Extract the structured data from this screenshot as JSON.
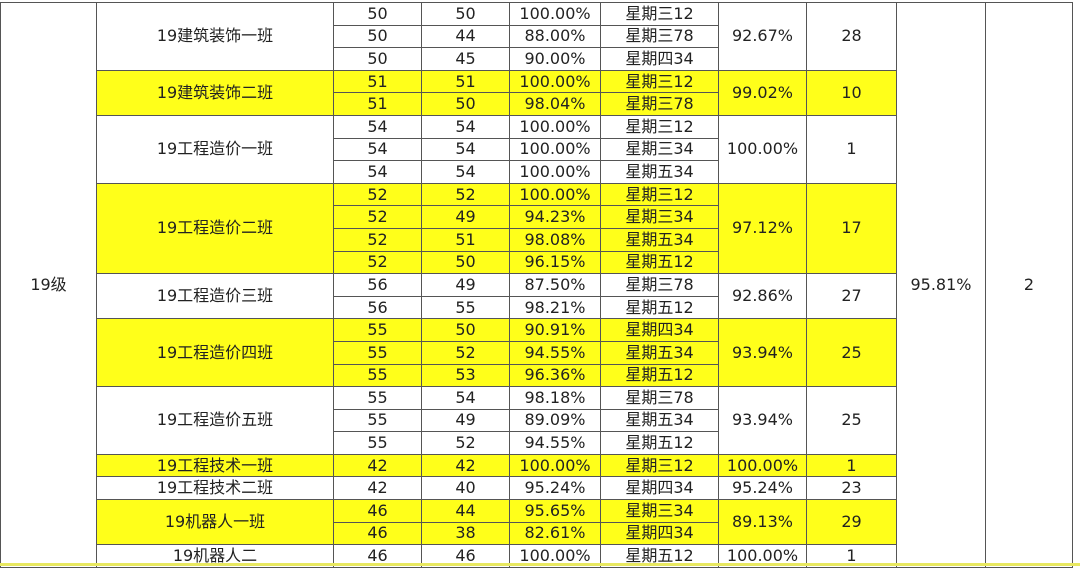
{
  "grade": "19级",
  "grade_rate": "95.81%",
  "grade_rank": "2",
  "colors": {
    "highlight": "#ffff1a",
    "border": "#555555"
  },
  "classes": [
    {
      "name": "19建筑装饰一班",
      "highlight": false,
      "rate": "92.67%",
      "rank": "28",
      "rows": [
        [
          "50",
          "50",
          "100.00%",
          "星期三12"
        ],
        [
          "50",
          "44",
          "88.00%",
          "星期三78"
        ],
        [
          "50",
          "45",
          "90.00%",
          "星期四34"
        ]
      ]
    },
    {
      "name": "19建筑装饰二班",
      "highlight": true,
      "rate": "99.02%",
      "rank": "10",
      "rows": [
        [
          "51",
          "51",
          "100.00%",
          "星期三12"
        ],
        [
          "51",
          "50",
          "98.04%",
          "星期三78"
        ]
      ]
    },
    {
      "name": "19工程造价一班",
      "highlight": false,
      "rate": "100.00%",
      "rank": "1",
      "rows": [
        [
          "54",
          "54",
          "100.00%",
          "星期三12"
        ],
        [
          "54",
          "54",
          "100.00%",
          "星期三34"
        ],
        [
          "54",
          "54",
          "100.00%",
          "星期五34"
        ]
      ]
    },
    {
      "name": "19工程造价二班",
      "highlight": true,
      "rate": "97.12%",
      "rank": "17",
      "rows": [
        [
          "52",
          "52",
          "100.00%",
          "星期三12"
        ],
        [
          "52",
          "49",
          "94.23%",
          "星期三34"
        ],
        [
          "52",
          "51",
          "98.08%",
          "星期五34"
        ],
        [
          "52",
          "50",
          "96.15%",
          "星期五12"
        ]
      ]
    },
    {
      "name": "19工程造价三班",
      "highlight": false,
      "rate": "92.86%",
      "rank": "27",
      "rows": [
        [
          "56",
          "49",
          "87.50%",
          "星期三78"
        ],
        [
          "56",
          "55",
          "98.21%",
          "星期五12"
        ]
      ]
    },
    {
      "name": "19工程造价四班",
      "highlight": true,
      "rate": "93.94%",
      "rank": "25",
      "rows": [
        [
          "55",
          "50",
          "90.91%",
          "星期四34"
        ],
        [
          "55",
          "52",
          "94.55%",
          "星期五34"
        ],
        [
          "55",
          "53",
          "96.36%",
          "星期五12"
        ]
      ]
    },
    {
      "name": "19工程造价五班",
      "highlight": false,
      "rate": "93.94%",
      "rank": "25",
      "rows": [
        [
          "55",
          "54",
          "98.18%",
          "星期三78"
        ],
        [
          "55",
          "49",
          "89.09%",
          "星期五34"
        ],
        [
          "55",
          "52",
          "94.55%",
          "星期五12"
        ]
      ]
    },
    {
      "name": "19工程技术一班",
      "highlight": true,
      "rate": "100.00%",
      "rank": "1",
      "rows": [
        [
          "42",
          "42",
          "100.00%",
          "星期三12"
        ]
      ]
    },
    {
      "name": "19工程技术二班",
      "highlight": false,
      "rate": "95.24%",
      "rank": "23",
      "rows": [
        [
          "42",
          "40",
          "95.24%",
          "星期四34"
        ]
      ]
    },
    {
      "name": "19机器人一班",
      "highlight": true,
      "rate": "89.13%",
      "rank": "29",
      "rows": [
        [
          "46",
          "44",
          "95.65%",
          "星期三34"
        ],
        [
          "46",
          "38",
          "82.61%",
          "星期四34"
        ]
      ]
    },
    {
      "name": "19机器人二",
      "highlight": false,
      "rate": "100.00%",
      "rank": "1",
      "rows": [
        [
          "46",
          "46",
          "100.00%",
          "星期五12"
        ]
      ]
    }
  ]
}
